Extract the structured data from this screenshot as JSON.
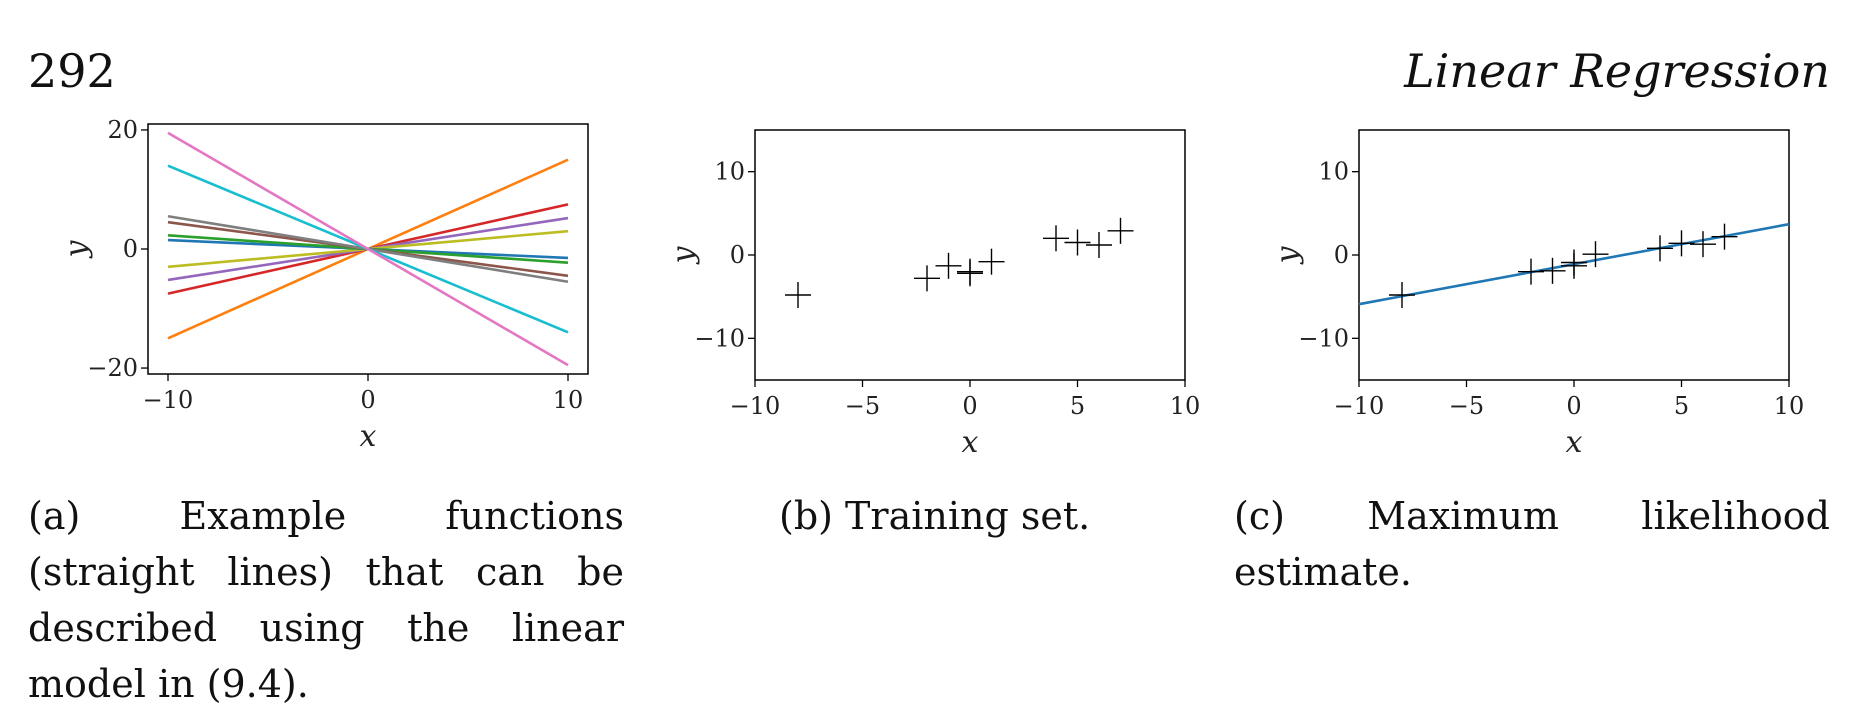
{
  "page": {
    "number": "292",
    "running_head": "Linear Regression"
  },
  "captions": [
    "(a) Example functions (straight lines) that can be described using the linear model in (9.4).",
    "(b) Training set.",
    "(c) Maximum likelihood estimate."
  ],
  "chart_data": [
    {
      "type": "line",
      "panel": "a",
      "xlabel": "x",
      "ylabel": "y",
      "xlim": [
        -11,
        11
      ],
      "ylim": [
        -21,
        21
      ],
      "xticks": [
        -10,
        0,
        10
      ],
      "yticks": [
        -20,
        0,
        20
      ],
      "x": [
        -10,
        10
      ],
      "series": [
        {
          "slope": 1.5,
          "color": "#ff7f0e"
        },
        {
          "slope": 0.75,
          "color": "#d62728"
        },
        {
          "slope": 0.52,
          "color": "#9467bd"
        },
        {
          "slope": 0.3,
          "color": "#bcbd22"
        },
        {
          "slope": -0.15,
          "color": "#1f77b4"
        },
        {
          "slope": -0.23,
          "color": "#2ca02c"
        },
        {
          "slope": -0.45,
          "color": "#8c564b"
        },
        {
          "slope": -0.55,
          "color": "#7f7f7f"
        },
        {
          "slope": -1.4,
          "color": "#17becf"
        },
        {
          "slope": -1.95,
          "color": "#e377c2"
        }
      ]
    },
    {
      "type": "scatter",
      "panel": "b",
      "xlabel": "x",
      "ylabel": "y",
      "xlim": [
        -10,
        10
      ],
      "ylim": [
        -15,
        15
      ],
      "xticks": [
        -10,
        -5,
        0,
        5,
        10
      ],
      "yticks": [
        -10,
        0,
        10
      ],
      "points": [
        [
          -8,
          -4.8
        ],
        [
          -2,
          -2.8
        ],
        [
          -1,
          -1.3
        ],
        [
          0,
          -2.0
        ],
        [
          0,
          -2.2
        ],
        [
          1,
          -0.8
        ],
        [
          4,
          2.0
        ],
        [
          5,
          1.5
        ],
        [
          6,
          1.2
        ],
        [
          7,
          2.9
        ]
      ]
    },
    {
      "type": "scatter",
      "panel": "c",
      "xlabel": "x",
      "ylabel": "y",
      "xlim": [
        -10,
        10
      ],
      "ylim": [
        -15,
        15
      ],
      "xticks": [
        -10,
        -5,
        0,
        5,
        10
      ],
      "yticks": [
        -10,
        0,
        10
      ],
      "points": [
        [
          -8,
          -4.8
        ],
        [
          -2,
          -2.0
        ],
        [
          -1,
          -1.9
        ],
        [
          0,
          -1.3
        ],
        [
          0,
          -0.9
        ],
        [
          1,
          0.1
        ],
        [
          4,
          0.8
        ],
        [
          5,
          1.4
        ],
        [
          6,
          1.3
        ],
        [
          7,
          2.2
        ]
      ],
      "fit_line": {
        "x": [
          -10,
          10
        ],
        "y": [
          -5.9,
          3.7
        ],
        "color": "#1f77b4"
      }
    }
  ]
}
